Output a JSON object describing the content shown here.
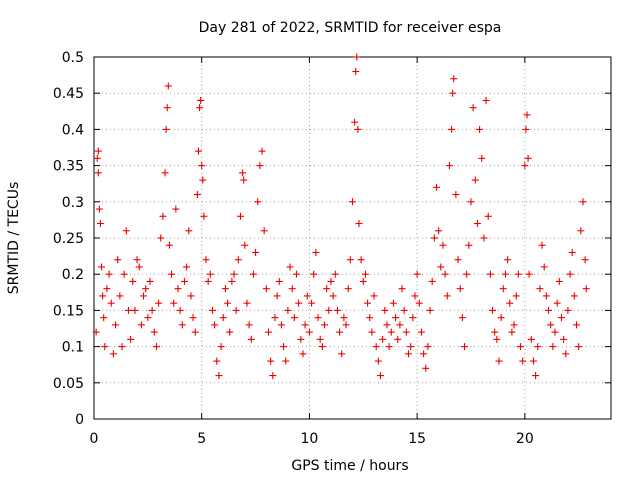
{
  "chart_data": {
    "type": "scatter",
    "title": "Day 281 of 2022, SRMTID for receiver espa",
    "xlabel": "GPS time / hours",
    "ylabel": "SRMTID / TECUs",
    "xlim": [
      0,
      24
    ],
    "ylim": [
      0,
      0.5
    ],
    "xticks": [
      "0",
      "5",
      "10",
      "15",
      "20"
    ],
    "yticks": [
      "0",
      "0.05",
      "0.1",
      "0.15",
      "0.2",
      "0.25",
      "0.3",
      "0.35",
      "0.4",
      "0.45",
      "0.5"
    ],
    "grid": true,
    "marker": "+",
    "color": "#ee0000",
    "series": [
      {
        "name": "SRMTID",
        "points": [
          [
            0.1,
            0.12
          ],
          [
            0.15,
            0.36
          ],
          [
            0.2,
            0.37
          ],
          [
            0.2,
            0.34
          ],
          [
            0.25,
            0.29
          ],
          [
            0.3,
            0.27
          ],
          [
            0.35,
            0.21
          ],
          [
            0.4,
            0.17
          ],
          [
            0.45,
            0.14
          ],
          [
            0.5,
            0.1
          ],
          [
            0.6,
            0.18
          ],
          [
            0.7,
            0.2
          ],
          [
            0.8,
            0.16
          ],
          [
            0.9,
            0.09
          ],
          [
            1.0,
            0.13
          ],
          [
            1.1,
            0.22
          ],
          [
            1.2,
            0.17
          ],
          [
            1.3,
            0.1
          ],
          [
            1.4,
            0.2
          ],
          [
            1.5,
            0.26
          ],
          [
            1.6,
            0.15
          ],
          [
            1.7,
            0.11
          ],
          [
            1.8,
            0.19
          ],
          [
            1.9,
            0.15
          ],
          [
            2.0,
            0.22
          ],
          [
            2.1,
            0.21
          ],
          [
            2.2,
            0.13
          ],
          [
            2.3,
            0.17
          ],
          [
            2.4,
            0.18
          ],
          [
            2.5,
            0.14
          ],
          [
            2.6,
            0.19
          ],
          [
            2.7,
            0.15
          ],
          [
            2.8,
            0.12
          ],
          [
            2.9,
            0.1
          ],
          [
            3.0,
            0.16
          ],
          [
            3.1,
            0.25
          ],
          [
            3.2,
            0.28
          ],
          [
            3.3,
            0.34
          ],
          [
            3.35,
            0.4
          ],
          [
            3.4,
            0.43
          ],
          [
            3.45,
            0.46
          ],
          [
            3.5,
            0.24
          ],
          [
            3.6,
            0.2
          ],
          [
            3.7,
            0.16
          ],
          [
            3.8,
            0.29
          ],
          [
            3.9,
            0.18
          ],
          [
            4.0,
            0.15
          ],
          [
            4.1,
            0.13
          ],
          [
            4.2,
            0.19
          ],
          [
            4.3,
            0.21
          ],
          [
            4.4,
            0.26
          ],
          [
            4.5,
            0.17
          ],
          [
            4.6,
            0.14
          ],
          [
            4.7,
            0.12
          ],
          [
            4.8,
            0.31
          ],
          [
            4.85,
            0.37
          ],
          [
            4.9,
            0.43
          ],
          [
            4.95,
            0.44
          ],
          [
            5.0,
            0.35
          ],
          [
            5.05,
            0.33
          ],
          [
            5.1,
            0.28
          ],
          [
            5.2,
            0.22
          ],
          [
            5.3,
            0.19
          ],
          [
            5.4,
            0.2
          ],
          [
            5.5,
            0.15
          ],
          [
            5.6,
            0.13
          ],
          [
            5.7,
            0.08
          ],
          [
            5.8,
            0.06
          ],
          [
            5.9,
            0.1
          ],
          [
            6.0,
            0.14
          ],
          [
            6.1,
            0.18
          ],
          [
            6.2,
            0.16
          ],
          [
            6.3,
            0.12
          ],
          [
            6.4,
            0.19
          ],
          [
            6.5,
            0.2
          ],
          [
            6.6,
            0.15
          ],
          [
            6.7,
            0.22
          ],
          [
            6.8,
            0.28
          ],
          [
            6.9,
            0.34
          ],
          [
            6.95,
            0.33
          ],
          [
            7.0,
            0.24
          ],
          [
            7.1,
            0.16
          ],
          [
            7.2,
            0.13
          ],
          [
            7.3,
            0.11
          ],
          [
            7.4,
            0.2
          ],
          [
            7.5,
            0.23
          ],
          [
            7.6,
            0.3
          ],
          [
            7.7,
            0.35
          ],
          [
            7.8,
            0.37
          ],
          [
            7.9,
            0.26
          ],
          [
            8.0,
            0.18
          ],
          [
            8.1,
            0.12
          ],
          [
            8.2,
            0.08
          ],
          [
            8.3,
            0.06
          ],
          [
            8.4,
            0.14
          ],
          [
            8.5,
            0.17
          ],
          [
            8.6,
            0.19
          ],
          [
            8.7,
            0.13
          ],
          [
            8.8,
            0.1
          ],
          [
            8.9,
            0.08
          ],
          [
            9.0,
            0.15
          ],
          [
            9.1,
            0.21
          ],
          [
            9.2,
            0.18
          ],
          [
            9.3,
            0.14
          ],
          [
            9.4,
            0.2
          ],
          [
            9.5,
            0.16
          ],
          [
            9.6,
            0.11
          ],
          [
            9.7,
            0.09
          ],
          [
            9.8,
            0.13
          ],
          [
            9.9,
            0.17
          ],
          [
            10.0,
            0.12
          ],
          [
            10.1,
            0.16
          ],
          [
            10.2,
            0.2
          ],
          [
            10.3,
            0.23
          ],
          [
            10.4,
            0.14
          ],
          [
            10.5,
            0.11
          ],
          [
            10.6,
            0.1
          ],
          [
            10.7,
            0.13
          ],
          [
            10.8,
            0.18
          ],
          [
            10.9,
            0.15
          ],
          [
            11.0,
            0.19
          ],
          [
            11.1,
            0.17
          ],
          [
            11.2,
            0.2
          ],
          [
            11.3,
            0.15
          ],
          [
            11.4,
            0.12
          ],
          [
            11.5,
            0.09
          ],
          [
            11.6,
            0.14
          ],
          [
            11.7,
            0.13
          ],
          [
            11.8,
            0.18
          ],
          [
            11.9,
            0.22
          ],
          [
            12.0,
            0.3
          ],
          [
            12.1,
            0.41
          ],
          [
            12.15,
            0.48
          ],
          [
            12.2,
            0.5
          ],
          [
            12.25,
            0.4
          ],
          [
            12.3,
            0.27
          ],
          [
            12.4,
            0.22
          ],
          [
            12.5,
            0.19
          ],
          [
            12.6,
            0.2
          ],
          [
            12.7,
            0.16
          ],
          [
            12.8,
            0.14
          ],
          [
            12.9,
            0.12
          ],
          [
            13.0,
            0.17
          ],
          [
            13.1,
            0.1
          ],
          [
            13.2,
            0.08
          ],
          [
            13.3,
            0.06
          ],
          [
            13.4,
            0.11
          ],
          [
            13.5,
            0.15
          ],
          [
            13.6,
            0.13
          ],
          [
            13.7,
            0.1
          ],
          [
            13.8,
            0.12
          ],
          [
            13.9,
            0.16
          ],
          [
            14.0,
            0.14
          ],
          [
            14.1,
            0.11
          ],
          [
            14.2,
            0.13
          ],
          [
            14.3,
            0.18
          ],
          [
            14.4,
            0.15
          ],
          [
            14.5,
            0.12
          ],
          [
            14.6,
            0.09
          ],
          [
            14.7,
            0.1
          ],
          [
            14.8,
            0.14
          ],
          [
            14.9,
            0.17
          ],
          [
            15.0,
            0.2
          ],
          [
            15.1,
            0.16
          ],
          [
            15.2,
            0.12
          ],
          [
            15.3,
            0.09
          ],
          [
            15.4,
            0.07
          ],
          [
            15.5,
            0.1
          ],
          [
            15.6,
            0.15
          ],
          [
            15.7,
            0.19
          ],
          [
            15.8,
            0.25
          ],
          [
            15.9,
            0.32
          ],
          [
            16.0,
            0.26
          ],
          [
            16.1,
            0.21
          ],
          [
            16.2,
            0.24
          ],
          [
            16.3,
            0.2
          ],
          [
            16.4,
            0.17
          ],
          [
            16.5,
            0.35
          ],
          [
            16.6,
            0.4
          ],
          [
            16.65,
            0.45
          ],
          [
            16.7,
            0.47
          ],
          [
            16.8,
            0.31
          ],
          [
            16.9,
            0.22
          ],
          [
            17.0,
            0.18
          ],
          [
            17.1,
            0.14
          ],
          [
            17.2,
            0.1
          ],
          [
            17.3,
            0.2
          ],
          [
            17.4,
            0.24
          ],
          [
            17.5,
            0.3
          ],
          [
            17.6,
            0.43
          ],
          [
            17.7,
            0.33
          ],
          [
            17.8,
            0.27
          ],
          [
            17.9,
            0.4
          ],
          [
            18.0,
            0.36
          ],
          [
            18.1,
            0.25
          ],
          [
            18.2,
            0.44
          ],
          [
            18.3,
            0.28
          ],
          [
            18.4,
            0.2
          ],
          [
            18.5,
            0.15
          ],
          [
            18.6,
            0.12
          ],
          [
            18.7,
            0.11
          ],
          [
            18.8,
            0.08
          ],
          [
            18.9,
            0.14
          ],
          [
            19.0,
            0.18
          ],
          [
            19.1,
            0.2
          ],
          [
            19.2,
            0.22
          ],
          [
            19.3,
            0.16
          ],
          [
            19.4,
            0.12
          ],
          [
            19.5,
            0.13
          ],
          [
            19.6,
            0.17
          ],
          [
            19.7,
            0.2
          ],
          [
            19.8,
            0.1
          ],
          [
            19.9,
            0.08
          ],
          [
            20.0,
            0.35
          ],
          [
            20.05,
            0.4
          ],
          [
            20.1,
            0.42
          ],
          [
            20.15,
            0.36
          ],
          [
            20.2,
            0.2
          ],
          [
            20.3,
            0.11
          ],
          [
            20.4,
            0.08
          ],
          [
            20.5,
            0.06
          ],
          [
            20.6,
            0.1
          ],
          [
            20.7,
            0.18
          ],
          [
            20.8,
            0.24
          ],
          [
            20.9,
            0.21
          ],
          [
            21.0,
            0.17
          ],
          [
            21.1,
            0.15
          ],
          [
            21.2,
            0.13
          ],
          [
            21.3,
            0.1
          ],
          [
            21.4,
            0.12
          ],
          [
            21.5,
            0.16
          ],
          [
            21.6,
            0.19
          ],
          [
            21.7,
            0.14
          ],
          [
            21.8,
            0.11
          ],
          [
            21.9,
            0.09
          ],
          [
            22.0,
            0.15
          ],
          [
            22.1,
            0.2
          ],
          [
            22.2,
            0.23
          ],
          [
            22.3,
            0.17
          ],
          [
            22.4,
            0.13
          ],
          [
            22.5,
            0.1
          ],
          [
            22.6,
            0.26
          ],
          [
            22.7,
            0.3
          ],
          [
            22.8,
            0.22
          ],
          [
            22.85,
            0.18
          ]
        ]
      }
    ]
  }
}
